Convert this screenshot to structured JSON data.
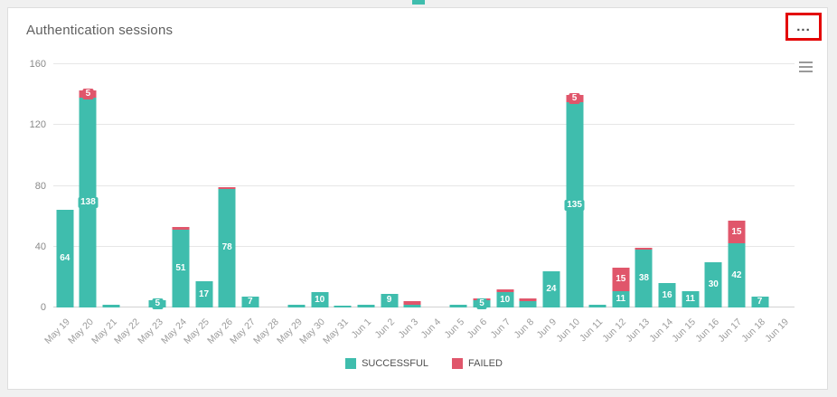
{
  "header": {
    "title": "Authentication sessions",
    "kebab_label": "...",
    "annotation_color": "#e30505"
  },
  "export_menu": {
    "icon": "hamburger-menu"
  },
  "chart_data": {
    "type": "bar",
    "stacked": true,
    "title": "Authentication sessions",
    "categories": [
      "May 19",
      "May 20",
      "May 21",
      "May 22",
      "May 23",
      "May 24",
      "May 25",
      "May 26",
      "May 27",
      "May 28",
      "May 29",
      "May 30",
      "May 31",
      "Jun 1",
      "Jun 2",
      "Jun 3",
      "Jun 4",
      "Jun 5",
      "Jun 6",
      "Jun 7",
      "Jun 8",
      "Jun 9",
      "Jun 10",
      "Jun 11",
      "Jun 12",
      "Jun 13",
      "Jun 14",
      "Jun 15",
      "Jun 16",
      "Jun 17",
      "Jun 18",
      "Jun 19"
    ],
    "series": [
      {
        "name": "SUCCESSFUL",
        "color": "#3fbdad",
        "values": [
          64,
          138,
          2,
          0,
          5,
          51,
          17,
          78,
          7,
          0,
          2,
          10,
          1,
          2,
          9,
          2,
          0,
          2,
          5,
          10,
          4,
          24,
          135,
          2,
          11,
          38,
          16,
          11,
          30,
          42,
          7,
          0
        ]
      },
      {
        "name": "FAILED",
        "color": "#e0566b",
        "values": [
          0,
          5,
          0,
          0,
          0,
          2,
          0,
          1,
          0,
          0,
          0,
          0,
          0,
          0,
          0,
          2,
          0,
          0,
          1,
          2,
          2,
          0,
          5,
          0,
          15,
          1,
          0,
          0,
          0,
          15,
          0,
          0
        ]
      }
    ],
    "ylim": [
      0,
      160
    ],
    "yticks": [
      0,
      40,
      80,
      120,
      160
    ],
    "grid": true,
    "legend_position": "bottom",
    "bar_label_min": 5
  },
  "legend": {
    "items": [
      {
        "label": "SUCCESSFUL",
        "color": "#3fbdad"
      },
      {
        "label": "FAILED",
        "color": "#e0566b"
      }
    ]
  }
}
